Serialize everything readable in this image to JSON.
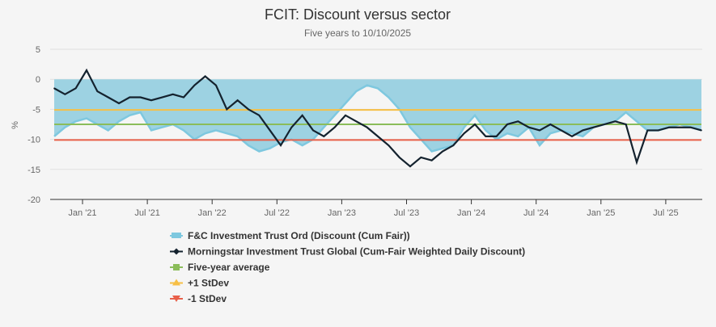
{
  "chart_data": {
    "type": "area",
    "title": "FCIT: Discount versus sector",
    "subtitle": "Five years to 10/10/2025",
    "ylabel": "%",
    "ylim": [
      -20,
      5
    ],
    "yticks": [
      5,
      0,
      -5,
      -10,
      -15,
      -20
    ],
    "xticks": [
      {
        "date": "2021-01",
        "label": "Jan '21"
      },
      {
        "date": "2021-07",
        "label": "Jul '21"
      },
      {
        "date": "2022-01",
        "label": "Jan '22"
      },
      {
        "date": "2022-07",
        "label": "Jul '22"
      },
      {
        "date": "2023-01",
        "label": "Jan '23"
      },
      {
        "date": "2023-07",
        "label": "Jul '23"
      },
      {
        "date": "2024-01",
        "label": "Jan '24"
      },
      {
        "date": "2024-07",
        "label": "Jul '24"
      },
      {
        "date": "2025-01",
        "label": "Jan '25"
      },
      {
        "date": "2025-07",
        "label": "Jul '25"
      }
    ],
    "xrange": [
      "2020-10",
      "2025-10"
    ],
    "grid": true,
    "legend_placement": "bottom",
    "dates": [
      "2020-10",
      "2020-11",
      "2020-12",
      "2021-01",
      "2021-02",
      "2021-03",
      "2021-04",
      "2021-05",
      "2021-06",
      "2021-07",
      "2021-08",
      "2021-09",
      "2021-10",
      "2021-11",
      "2021-12",
      "2022-01",
      "2022-02",
      "2022-03",
      "2022-04",
      "2022-05",
      "2022-06",
      "2022-07",
      "2022-08",
      "2022-09",
      "2022-10",
      "2022-11",
      "2022-12",
      "2023-01",
      "2023-02",
      "2023-03",
      "2023-04",
      "2023-05",
      "2023-06",
      "2023-07",
      "2023-08",
      "2023-09",
      "2023-10",
      "2023-11",
      "2023-12",
      "2024-01",
      "2024-02",
      "2024-03",
      "2024-04",
      "2024-05",
      "2024-06",
      "2024-07",
      "2024-08",
      "2024-09",
      "2024-10",
      "2024-11",
      "2024-12",
      "2025-01",
      "2025-02",
      "2025-03",
      "2025-04",
      "2025-05",
      "2025-06",
      "2025-07",
      "2025-08",
      "2025-09",
      "2025-10"
    ],
    "series": [
      {
        "name": "F&C Investment Trust Ord (Discount (Cum Fair))",
        "kind": "area",
        "color": "#7ec8df",
        "values": [
          -9.5,
          -8,
          -7,
          -6.5,
          -7.5,
          -8.5,
          -7,
          -6,
          -5.5,
          -8.5,
          -8,
          -7.5,
          -8.5,
          -10,
          -9,
          -8.5,
          -9,
          -9.5,
          -11,
          -12,
          -11.5,
          -10.5,
          -10,
          -11,
          -10,
          -8,
          -6,
          -4,
          -2,
          -1,
          -1.5,
          -3,
          -5,
          -8,
          -10,
          -12,
          -11.5,
          -11,
          -8,
          -6,
          -8.5,
          -10,
          -9,
          -9.5,
          -8,
          -11,
          -9,
          -8.5,
          -9,
          -9.5,
          -8,
          -7.5,
          -7,
          -5.5,
          -7,
          -8.5,
          -8.5,
          -8,
          -7.5,
          -8,
          -8.5
        ]
      },
      {
        "name": "Morningstar Investment Trust Global (Cum-Fair Weighted Daily Discount)",
        "kind": "line",
        "color": "#14222e",
        "values": [
          -1.5,
          -2.5,
          -1.5,
          1.5,
          -2,
          -3,
          -4,
          -3,
          -3,
          -3.5,
          -3,
          -2.5,
          -3,
          -1,
          0.5,
          -1,
          -5,
          -3.5,
          -5,
          -6,
          -8.5,
          -11,
          -8,
          -6,
          -8.5,
          -9.5,
          -8,
          -6,
          -7,
          -8,
          -9.5,
          -11,
          -13,
          -14.5,
          -13,
          -13.5,
          -12,
          -11,
          -9,
          -7.5,
          -9.5,
          -9.5,
          -7.5,
          -7,
          -8,
          -8.5,
          -7.5,
          -8.5,
          -9.5,
          -8.5,
          -8,
          -7.5,
          -7,
          -7.5,
          -13.8,
          -8.5,
          -8.5,
          -8,
          -8,
          -8,
          -8.5
        ]
      },
      {
        "name": "Five-year average",
        "kind": "hline",
        "color": "#8bbd5a",
        "value": -7.5
      },
      {
        "name": "+1 StDev",
        "kind": "hline",
        "color": "#f7bf45",
        "value": -5.1
      },
      {
        "name": "-1 StDev",
        "kind": "hline",
        "color": "#e8604a",
        "value": -10.1
      }
    ]
  }
}
